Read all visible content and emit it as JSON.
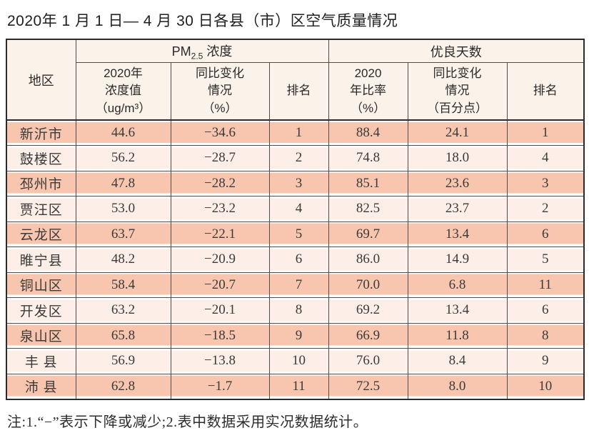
{
  "page": {
    "title": "2020年 1 月 1 日— 4 月 30 日各县（市）区空气质量情况",
    "note": "注:1.“−”表示下降或减少;2.表中数据采用实况数据统计。"
  },
  "table": {
    "header": {
      "region": "地区",
      "pm25": {
        "prefix": "PM",
        "sub": "2.5",
        "suffix": " 浓度"
      },
      "good_days": "优良天数",
      "sub_cols": {
        "pm_value": "2020年\n浓度值\n（ug/m³）",
        "pm_change": "同比变化\n情况\n（%）",
        "pm_rank": "排名",
        "gd_rate": "2020\n年比率\n（%）",
        "gd_change": "同比变化\n情况\n（百分点）",
        "gd_rank": "排名"
      }
    },
    "rows": [
      [
        "新沂市",
        "44.6",
        "−34.6",
        "1",
        "88.4",
        "24.1",
        "1"
      ],
      [
        "鼓楼区",
        "56.2",
        "−28.7",
        "2",
        "74.8",
        "18.0",
        "4"
      ],
      [
        "邳州市",
        "47.8",
        "−28.2",
        "3",
        "85.1",
        "23.6",
        "3"
      ],
      [
        "贾汪区",
        "53.0",
        "−23.2",
        "4",
        "82.5",
        "23.7",
        "2"
      ],
      [
        "云龙区",
        "63.7",
        "−22.1",
        "5",
        "69.7",
        "13.4",
        "6"
      ],
      [
        "睢宁县",
        "48.2",
        "−20.9",
        "6",
        "86.0",
        "14.9",
        "5"
      ],
      [
        "铜山区",
        "58.4",
        "−20.7",
        "7",
        "70.0",
        "6.8",
        "11"
      ],
      [
        "开发区",
        "63.2",
        "−20.1",
        "8",
        "69.2",
        "13.4",
        "6"
      ],
      [
        "泉山区",
        "65.8",
        "−18.5",
        "9",
        "66.9",
        "11.8",
        "8"
      ],
      [
        "丰 县",
        "56.9",
        "−13.8",
        "10",
        "76.0",
        "8.4",
        "9"
      ],
      [
        "沛 县",
        "62.8",
        "−1.7",
        "11",
        "72.5",
        "8.0",
        "10"
      ]
    ],
    "colors": {
      "stripe_dark": "#f8c6af",
      "stripe_light": "#fdefe8",
      "header_bg": "#fbf2e9",
      "border_dark": "#2b2b2b",
      "border_light": "#4d4d4d"
    }
  }
}
